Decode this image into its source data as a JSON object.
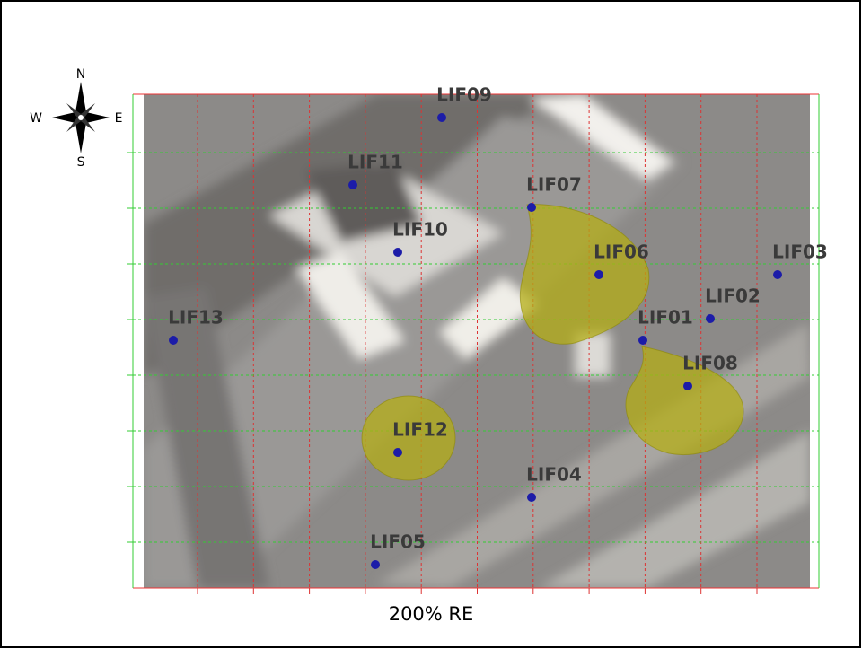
{
  "compass": {
    "north": "N",
    "south": "S",
    "east": "E",
    "west": "W"
  },
  "points": [
    {
      "label": "LIF09"
    },
    {
      "label": "LIF11"
    },
    {
      "label": "LIF07"
    },
    {
      "label": "LIF10"
    },
    {
      "label": "LIF06"
    },
    {
      "label": "LIF03"
    },
    {
      "label": "LIF02"
    },
    {
      "label": "LIF13"
    },
    {
      "label": "LIF01"
    },
    {
      "label": "LIF08"
    },
    {
      "label": "LIF12"
    },
    {
      "label": "LIF04"
    },
    {
      "label": "LIF05"
    }
  ],
  "caption": "200% RE"
}
